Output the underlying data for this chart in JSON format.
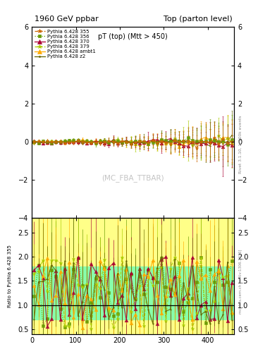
{
  "title_left": "1960 GeV ppbar",
  "title_right": "Top (parton level)",
  "plot_title": "pT (top) (Mtt > 450)",
  "ylabel_ratio": "Ratio to Pythia 6.428 355",
  "watermark": "(MC_FBA_TTBAR)",
  "rivet_label": "Rivet 3.1.10, ≥ 100k events",
  "mcplots_label": "mcplots.cern.ch [arXiv:1306.3436]",
  "xlim": [
    0,
    460
  ],
  "ylim_main": [
    -4,
    6
  ],
  "ylim_ratio": [
    0.4,
    2.8
  ],
  "yticks_main": [
    -4,
    -2,
    0,
    2,
    4,
    6
  ],
  "yticks_ratio": [
    0.5,
    1.0,
    1.5,
    2.0,
    2.5
  ],
  "series": [
    {
      "label": "Pythia 6.428 355",
      "color": "#cc6600",
      "marker": "*",
      "linestyle": "--",
      "linewidth": 0.8
    },
    {
      "label": "Pythia 6.428 356",
      "color": "#669900",
      "marker": "s",
      "linestyle": ":",
      "linewidth": 0.8
    },
    {
      "label": "Pythia 6.428 370",
      "color": "#aa0033",
      "marker": "^",
      "linestyle": "-",
      "linewidth": 0.8
    },
    {
      "label": "Pythia 6.428 379",
      "color": "#aacc00",
      "marker": "*",
      "linestyle": "--",
      "linewidth": 0.8
    },
    {
      "label": "Pythia 6.428 ambt1",
      "color": "#ffaa00",
      "marker": "^",
      "linestyle": "-",
      "linewidth": 0.8
    },
    {
      "label": "Pythia 6.428 z2",
      "color": "#666600",
      "marker": ".",
      "linestyle": "-",
      "linewidth": 0.8
    }
  ],
  "ratio_band_yellow": "#ffff88",
  "ratio_band_green": "#88ffaa"
}
